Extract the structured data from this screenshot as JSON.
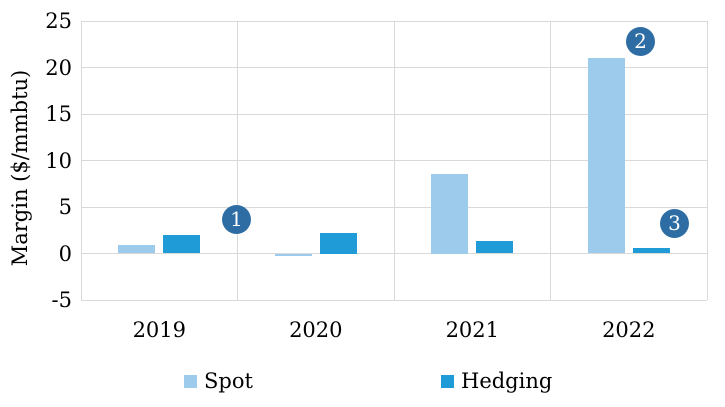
{
  "chart_data": {
    "type": "bar",
    "title": "",
    "ylabel": "Margin ($/mmbtu)",
    "xlabel": "",
    "categories": [
      "2019",
      "2020",
      "2021",
      "2022"
    ],
    "series": [
      {
        "name": "Spot",
        "color": "#9CCBEC",
        "values": [
          0.9,
          -0.3,
          8.6,
          21.0
        ]
      },
      {
        "name": "Hedging",
        "color": "#1F9BD7",
        "values": [
          2.0,
          2.2,
          1.3,
          0.6
        ]
      }
    ],
    "ylim": [
      -5,
      25
    ],
    "yticks": [
      25,
      20,
      15,
      10,
      5,
      0,
      -5
    ],
    "grid": true,
    "gridline_color": "#D9D9D9",
    "legend_position": "bottom",
    "annotation_color": "#2E6DA4",
    "annotations": [
      {
        "label": "1"
      },
      {
        "label": "2"
      },
      {
        "label": "3"
      }
    ]
  }
}
